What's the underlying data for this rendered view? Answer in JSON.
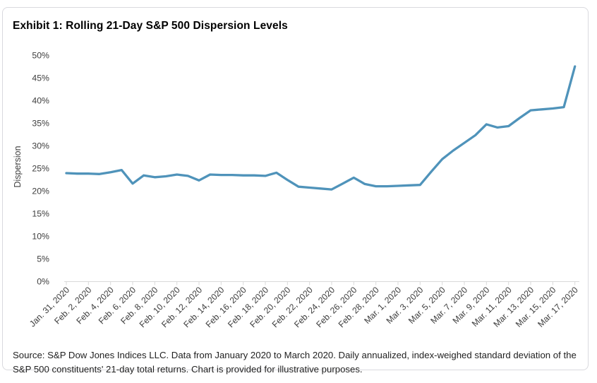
{
  "title": "Exhibit 1: Rolling 21-Day S&P 500 Dispersion Levels",
  "footer": {
    "text": "Source: S&P Dow Jones Indices LLC. Data from January 2020 to March 2020. Daily annualized, index-weighed standard deviation of the S&P 500 constituents' 21-day total returns. Chart is provided for illustrative purposes."
  },
  "colors": {
    "line": "#4F93BA",
    "axis": "#d9d9d9",
    "tick_text": "#3d3d3d",
    "axis_title_text": "#3d3d3d"
  },
  "chart_data": {
    "type": "line",
    "title": "Exhibit 1: Rolling 21-Day S&P 500 Dispersion Levels",
    "xlabel": "",
    "ylabel": "Dispersion",
    "ylim": [
      0,
      50
    ],
    "ytick_step": 5,
    "ytick_suffix": "%",
    "grid": false,
    "legend": "none",
    "x_tick_labels": [
      "Jan. 31, 2020",
      "Feb. 2, 2020",
      "Feb. 4, 2020",
      "Feb. 6, 2020",
      "Feb. 8, 2020",
      "Feb. 10, 2020",
      "Feb. 12, 2020",
      "Feb. 14, 2020",
      "Feb. 16, 2020",
      "Feb. 18, 2020",
      "Feb. 20, 2020",
      "Feb. 22, 2020",
      "Feb. 24, 2020",
      "Feb. 26, 2020",
      "Feb. 28, 2020",
      "Mar. 1, 2020",
      "Mar. 3, 2020",
      "Mar. 5, 2020",
      "Mar. 7, 2020",
      "Mar. 9, 2020",
      "Mar. 11, 2020",
      "Mar. 13, 2020",
      "Mar. 15, 2020",
      "Mar. 17, 2020"
    ],
    "series": [
      {
        "name": "Rolling 21-Day S&P 500 Dispersion",
        "x": [
          "Jan. 31, 2020",
          "Feb. 1, 2020",
          "Feb. 2, 2020",
          "Feb. 3, 2020",
          "Feb. 4, 2020",
          "Feb. 5, 2020",
          "Feb. 6, 2020",
          "Feb. 7, 2020",
          "Feb. 8, 2020",
          "Feb. 9, 2020",
          "Feb. 10, 2020",
          "Feb. 11, 2020",
          "Feb. 12, 2020",
          "Feb. 13, 2020",
          "Feb. 14, 2020",
          "Feb. 15, 2020",
          "Feb. 16, 2020",
          "Feb. 17, 2020",
          "Feb. 18, 2020",
          "Feb. 19, 2020",
          "Feb. 20, 2020",
          "Feb. 21, 2020",
          "Feb. 22, 2020",
          "Feb. 23, 2020",
          "Feb. 24, 2020",
          "Feb. 25, 2020",
          "Feb. 26, 2020",
          "Feb. 27, 2020",
          "Feb. 28, 2020",
          "Feb. 29, 2020",
          "Mar. 1, 2020",
          "Mar. 2, 2020",
          "Mar. 3, 2020",
          "Mar. 4, 2020",
          "Mar. 5, 2020",
          "Mar. 6, 2020",
          "Mar. 7, 2020",
          "Mar. 8, 2020",
          "Mar. 9, 2020",
          "Mar. 10, 2020",
          "Mar. 11, 2020",
          "Mar. 12, 2020",
          "Mar. 13, 2020",
          "Mar. 14, 2020",
          "Mar. 15, 2020",
          "Mar. 16, 2020",
          "Mar. 17, 2020"
        ],
        "values": [
          23.9,
          23.8,
          23.8,
          23.7,
          24.1,
          24.6,
          21.6,
          23.4,
          23.0,
          23.2,
          23.6,
          23.3,
          22.3,
          23.6,
          23.5,
          23.5,
          23.4,
          23.4,
          23.3,
          24.0,
          22.4,
          20.9,
          20.7,
          20.5,
          20.3,
          21.6,
          22.9,
          21.5,
          21.0,
          21.0,
          21.1,
          21.2,
          21.3,
          24.2,
          27.0,
          28.9,
          30.6,
          32.3,
          34.7,
          34.0,
          34.3,
          36.1,
          37.8,
          38.0,
          38.2,
          38.5,
          47.5
        ]
      }
    ]
  }
}
